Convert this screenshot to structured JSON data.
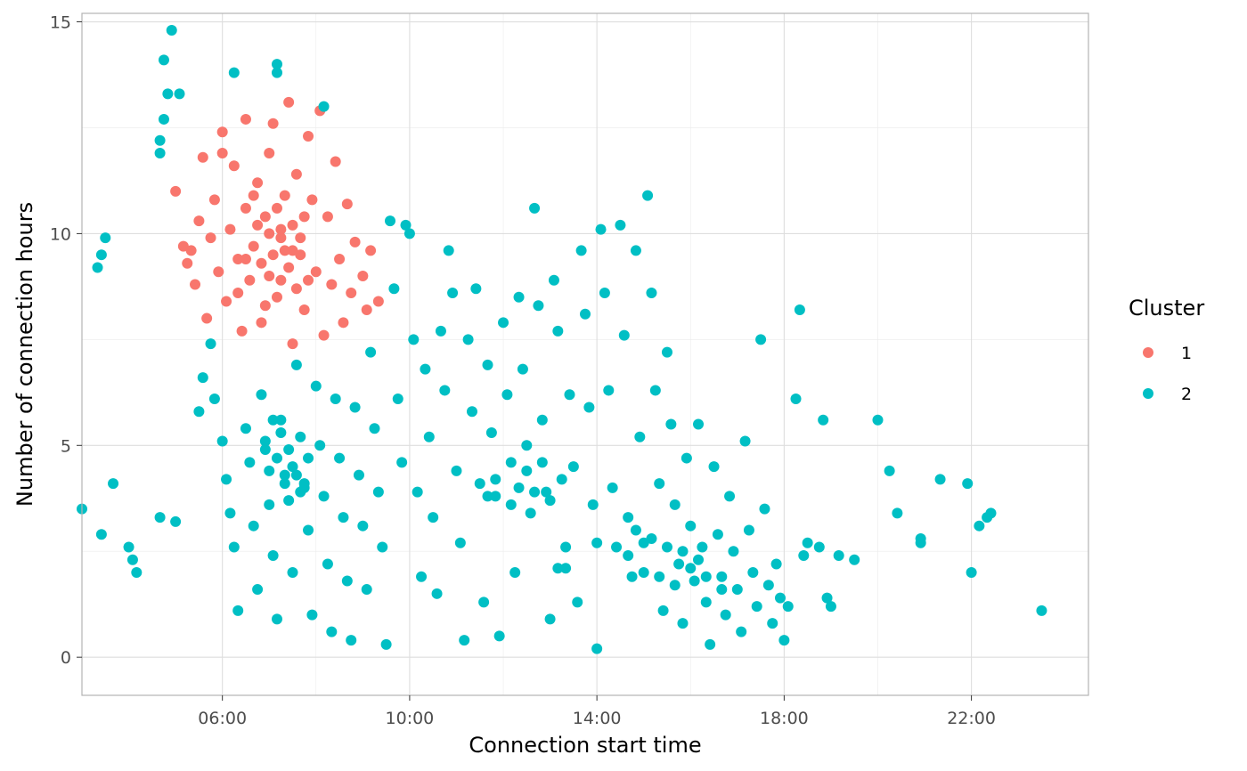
{
  "chart_data": {
    "type": "scatter",
    "title": "",
    "xlabel": "Connection start time",
    "ylabel": "Number of connection hours",
    "x_unit": "hour of day",
    "xlim": [
      "03:00",
      "24:30"
    ],
    "ylim": [
      -0.9,
      15.2
    ],
    "x_ticks": [
      {
        "value": "06:00",
        "label": "06:00"
      },
      {
        "value": "10:00",
        "label": "10:00"
      },
      {
        "value": "14:00",
        "label": "14:00"
      },
      {
        "value": "18:00",
        "label": "18:00"
      },
      {
        "value": "22:00",
        "label": "22:00"
      }
    ],
    "y_ticks": [
      0,
      5,
      10,
      15
    ],
    "grid": true,
    "legend": {
      "title": "Cluster",
      "placement": "right"
    },
    "series": [
      {
        "name": "1",
        "color": "#F8766D",
        "points": [
          [
            "05:00",
            11.0
          ],
          [
            "05:10",
            9.7
          ],
          [
            "05:15",
            9.3
          ],
          [
            "05:20",
            9.6
          ],
          [
            "05:25",
            8.8
          ],
          [
            "05:30",
            10.3
          ],
          [
            "05:35",
            11.8
          ],
          [
            "05:40",
            8.0
          ],
          [
            "05:45",
            9.9
          ],
          [
            "05:50",
            10.8
          ],
          [
            "05:55",
            9.1
          ],
          [
            "06:00",
            11.9
          ],
          [
            "06:00",
            12.4
          ],
          [
            "06:05",
            8.4
          ],
          [
            "06:10",
            10.1
          ],
          [
            "06:15",
            11.6
          ],
          [
            "06:20",
            9.4
          ],
          [
            "06:25",
            7.7
          ],
          [
            "06:30",
            12.7
          ],
          [
            "06:30",
            10.6
          ],
          [
            "06:35",
            8.9
          ],
          [
            "06:40",
            9.7
          ],
          [
            "06:45",
            11.2
          ],
          [
            "06:50",
            7.9
          ],
          [
            "06:55",
            10.4
          ],
          [
            "07:00",
            11.9
          ],
          [
            "07:00",
            9.0
          ],
          [
            "07:05",
            12.6
          ],
          [
            "07:10",
            8.5
          ],
          [
            "07:15",
            10.1
          ],
          [
            "07:20",
            9.6
          ],
          [
            "07:25",
            13.1
          ],
          [
            "07:30",
            7.4
          ],
          [
            "07:35",
            11.4
          ],
          [
            "07:40",
            9.9
          ],
          [
            "07:45",
            8.2
          ],
          [
            "07:50",
            12.3
          ],
          [
            "07:55",
            10.8
          ],
          [
            "08:00",
            9.1
          ],
          [
            "08:05",
            12.9
          ],
          [
            "08:10",
            7.6
          ],
          [
            "08:15",
            10.4
          ],
          [
            "08:20",
            8.8
          ],
          [
            "08:25",
            11.7
          ],
          [
            "08:30",
            9.4
          ],
          [
            "08:35",
            7.9
          ],
          [
            "08:40",
            10.7
          ],
          [
            "08:45",
            8.6
          ],
          [
            "08:50",
            9.8
          ],
          [
            "09:00",
            9.0
          ],
          [
            "09:05",
            8.2
          ],
          [
            "09:10",
            9.6
          ],
          [
            "09:20",
            8.4
          ],
          [
            "06:40",
            10.9
          ],
          [
            "06:50",
            9.3
          ],
          [
            "07:00",
            10.0
          ],
          [
            "07:05",
            9.5
          ],
          [
            "07:10",
            10.6
          ],
          [
            "07:15",
            8.9
          ],
          [
            "07:20",
            10.9
          ],
          [
            "07:25",
            9.2
          ],
          [
            "07:30",
            10.2
          ],
          [
            "07:35",
            8.7
          ],
          [
            "07:40",
            9.5
          ],
          [
            "06:30",
            9.4
          ],
          [
            "06:45",
            10.2
          ],
          [
            "07:15",
            9.9
          ],
          [
            "07:30",
            9.6
          ],
          [
            "07:45",
            10.4
          ],
          [
            "06:20",
            8.6
          ],
          [
            "07:50",
            8.9
          ],
          [
            "06:55",
            8.3
          ]
        ]
      },
      {
        "name": "2",
        "color": "#00BFC4",
        "points": [
          [
            "04:55",
            14.8
          ],
          [
            "04:45",
            14.1
          ],
          [
            "04:50",
            13.3
          ],
          [
            "05:05",
            13.3
          ],
          [
            "04:45",
            12.7
          ],
          [
            "04:40",
            12.2
          ],
          [
            "04:40",
            11.9
          ],
          [
            "06:15",
            13.8
          ],
          [
            "07:10",
            14.0
          ],
          [
            "07:10",
            13.8
          ],
          [
            "08:10",
            13.0
          ],
          [
            "03:30",
            9.9
          ],
          [
            "03:25",
            9.5
          ],
          [
            "03:20",
            9.2
          ],
          [
            "03:40",
            4.1
          ],
          [
            "03:25",
            2.9
          ],
          [
            "03:00",
            3.5
          ],
          [
            "04:00",
            2.6
          ],
          [
            "04:05",
            2.3
          ],
          [
            "04:10",
            2.0
          ],
          [
            "04:40",
            3.3
          ],
          [
            "05:00",
            3.2
          ],
          [
            "05:30",
            5.8
          ],
          [
            "05:35",
            6.6
          ],
          [
            "05:45",
            7.4
          ],
          [
            "05:50",
            6.1
          ],
          [
            "06:00",
            5.1
          ],
          [
            "06:05",
            4.2
          ],
          [
            "06:10",
            3.4
          ],
          [
            "06:15",
            2.6
          ],
          [
            "06:20",
            1.1
          ],
          [
            "06:30",
            5.4
          ],
          [
            "06:35",
            4.6
          ],
          [
            "06:40",
            3.1
          ],
          [
            "06:45",
            1.6
          ],
          [
            "06:50",
            6.2
          ],
          [
            "06:55",
            4.9
          ],
          [
            "07:00",
            3.6
          ],
          [
            "07:05",
            2.4
          ],
          [
            "07:10",
            0.9
          ],
          [
            "07:15",
            5.6
          ],
          [
            "07:20",
            4.3
          ],
          [
            "07:25",
            3.7
          ],
          [
            "07:30",
            2.0
          ],
          [
            "07:35",
            6.9
          ],
          [
            "07:40",
            5.2
          ],
          [
            "07:45",
            4.1
          ],
          [
            "07:50",
            3.0
          ],
          [
            "07:55",
            1.0
          ],
          [
            "08:00",
            6.4
          ],
          [
            "08:05",
            5.0
          ],
          [
            "08:10",
            3.8
          ],
          [
            "08:15",
            2.2
          ],
          [
            "08:20",
            0.6
          ],
          [
            "08:25",
            6.1
          ],
          [
            "08:30",
            4.7
          ],
          [
            "08:35",
            3.3
          ],
          [
            "08:40",
            1.8
          ],
          [
            "08:45",
            0.4
          ],
          [
            "08:50",
            5.9
          ],
          [
            "08:55",
            4.3
          ],
          [
            "09:00",
            3.1
          ],
          [
            "09:05",
            1.6
          ],
          [
            "09:10",
            7.2
          ],
          [
            "09:15",
            5.4
          ],
          [
            "09:20",
            3.9
          ],
          [
            "09:25",
            2.6
          ],
          [
            "09:30",
            0.3
          ],
          [
            "09:35",
            10.3
          ],
          [
            "09:40",
            8.7
          ],
          [
            "09:45",
            6.1
          ],
          [
            "09:50",
            4.6
          ],
          [
            "09:55",
            10.2
          ],
          [
            "10:00",
            10.0
          ],
          [
            "10:05",
            7.5
          ],
          [
            "10:10",
            3.9
          ],
          [
            "10:15",
            1.9
          ],
          [
            "10:20",
            6.8
          ],
          [
            "10:25",
            5.2
          ],
          [
            "10:30",
            3.3
          ],
          [
            "10:35",
            1.5
          ],
          [
            "10:40",
            7.7
          ],
          [
            "10:45",
            6.3
          ],
          [
            "10:50",
            9.6
          ],
          [
            "10:55",
            8.6
          ],
          [
            "11:00",
            4.4
          ],
          [
            "11:05",
            2.7
          ],
          [
            "11:10",
            0.4
          ],
          [
            "11:15",
            7.5
          ],
          [
            "11:20",
            5.8
          ],
          [
            "11:25",
            8.7
          ],
          [
            "11:30",
            4.1
          ],
          [
            "11:35",
            1.3
          ],
          [
            "11:40",
            6.9
          ],
          [
            "11:45",
            5.3
          ],
          [
            "11:50",
            3.8
          ],
          [
            "11:55",
            0.5
          ],
          [
            "12:00",
            7.9
          ],
          [
            "12:05",
            6.2
          ],
          [
            "12:10",
            4.6
          ],
          [
            "12:15",
            2.0
          ],
          [
            "12:20",
            8.5
          ],
          [
            "12:25",
            6.8
          ],
          [
            "12:30",
            5.0
          ],
          [
            "12:35",
            3.4
          ],
          [
            "12:40",
            10.6
          ],
          [
            "12:45",
            8.3
          ],
          [
            "12:50",
            5.6
          ],
          [
            "12:55",
            3.9
          ],
          [
            "13:00",
            0.9
          ],
          [
            "13:05",
            8.9
          ],
          [
            "13:10",
            7.7
          ],
          [
            "13:15",
            4.2
          ],
          [
            "13:20",
            2.1
          ],
          [
            "13:25",
            6.2
          ],
          [
            "13:30",
            4.5
          ],
          [
            "13:35",
            1.3
          ],
          [
            "13:40",
            9.6
          ],
          [
            "13:45",
            8.1
          ],
          [
            "13:50",
            5.9
          ],
          [
            "13:55",
            3.6
          ],
          [
            "14:00",
            0.2
          ],
          [
            "14:05",
            10.1
          ],
          [
            "14:10",
            8.6
          ],
          [
            "14:15",
            6.3
          ],
          [
            "14:20",
            4.0
          ],
          [
            "14:25",
            2.6
          ],
          [
            "14:30",
            10.2
          ],
          [
            "14:35",
            7.6
          ],
          [
            "14:40",
            3.3
          ],
          [
            "14:45",
            1.9
          ],
          [
            "14:50",
            9.6
          ],
          [
            "14:55",
            5.2
          ],
          [
            "15:00",
            2.7
          ],
          [
            "15:05",
            10.9
          ],
          [
            "15:10",
            8.6
          ],
          [
            "15:15",
            6.3
          ],
          [
            "15:20",
            4.1
          ],
          [
            "15:25",
            1.1
          ],
          [
            "15:30",
            7.2
          ],
          [
            "15:35",
            5.5
          ],
          [
            "15:40",
            3.6
          ],
          [
            "15:45",
            2.2
          ],
          [
            "15:50",
            0.8
          ],
          [
            "15:55",
            4.7
          ],
          [
            "16:00",
            3.1
          ],
          [
            "16:05",
            1.8
          ],
          [
            "16:10",
            5.5
          ],
          [
            "16:15",
            2.6
          ],
          [
            "16:20",
            1.3
          ],
          [
            "16:25",
            0.3
          ],
          [
            "16:30",
            4.5
          ],
          [
            "16:35",
            2.9
          ],
          [
            "16:40",
            1.9
          ],
          [
            "16:45",
            1.0
          ],
          [
            "16:50",
            3.8
          ],
          [
            "16:55",
            2.5
          ],
          [
            "17:00",
            1.6
          ],
          [
            "17:05",
            0.6
          ],
          [
            "17:10",
            5.1
          ],
          [
            "17:15",
            3.0
          ],
          [
            "17:20",
            2.0
          ],
          [
            "17:25",
            1.2
          ],
          [
            "17:30",
            7.5
          ],
          [
            "17:35",
            3.5
          ],
          [
            "17:40",
            1.7
          ],
          [
            "17:45",
            0.8
          ],
          [
            "17:50",
            2.2
          ],
          [
            "17:55",
            1.4
          ],
          [
            "18:00",
            0.4
          ],
          [
            "18:05",
            1.2
          ],
          [
            "18:15",
            6.1
          ],
          [
            "18:20",
            8.2
          ],
          [
            "18:25",
            2.4
          ],
          [
            "18:30",
            2.7
          ],
          [
            "18:45",
            2.6
          ],
          [
            "18:50",
            5.6
          ],
          [
            "18:55",
            1.4
          ],
          [
            "19:00",
            1.2
          ],
          [
            "19:10",
            2.4
          ],
          [
            "19:30",
            2.3
          ],
          [
            "20:00",
            5.6
          ],
          [
            "20:15",
            4.4
          ],
          [
            "20:25",
            3.4
          ],
          [
            "20:55",
            2.8
          ],
          [
            "20:55",
            2.7
          ],
          [
            "21:20",
            4.2
          ],
          [
            "21:55",
            4.1
          ],
          [
            "22:00",
            2.0
          ],
          [
            "22:10",
            3.1
          ],
          [
            "22:20",
            3.3
          ],
          [
            "22:25",
            3.4
          ],
          [
            "23:30",
            1.1
          ],
          [
            "13:10",
            2.1
          ],
          [
            "13:20",
            2.6
          ],
          [
            "14:00",
            2.7
          ],
          [
            "14:40",
            2.4
          ],
          [
            "15:00",
            2.0
          ],
          [
            "15:20",
            1.9
          ],
          [
            "15:40",
            1.7
          ],
          [
            "16:00",
            2.1
          ],
          [
            "16:20",
            1.9
          ],
          [
            "16:40",
            1.6
          ],
          [
            "16:10",
            2.3
          ],
          [
            "15:50",
            2.5
          ],
          [
            "15:30",
            2.6
          ],
          [
            "15:10",
            2.8
          ],
          [
            "14:50",
            3.0
          ],
          [
            "12:30",
            4.4
          ],
          [
            "12:40",
            3.9
          ],
          [
            "12:50",
            4.6
          ],
          [
            "13:00",
            3.7
          ],
          [
            "12:20",
            4.0
          ],
          [
            "12:10",
            3.6
          ],
          [
            "11:50",
            4.2
          ],
          [
            "11:40",
            3.8
          ],
          [
            "07:10",
            4.7
          ],
          [
            "07:20",
            4.1
          ],
          [
            "07:30",
            4.5
          ],
          [
            "07:40",
            3.9
          ],
          [
            "07:15",
            5.3
          ],
          [
            "07:25",
            4.9
          ],
          [
            "07:35",
            4.3
          ],
          [
            "07:05",
            5.6
          ],
          [
            "07:45",
            4.0
          ],
          [
            "07:00",
            4.4
          ],
          [
            "06:55",
            5.1
          ],
          [
            "07:50",
            4.7
          ]
        ]
      }
    ]
  }
}
